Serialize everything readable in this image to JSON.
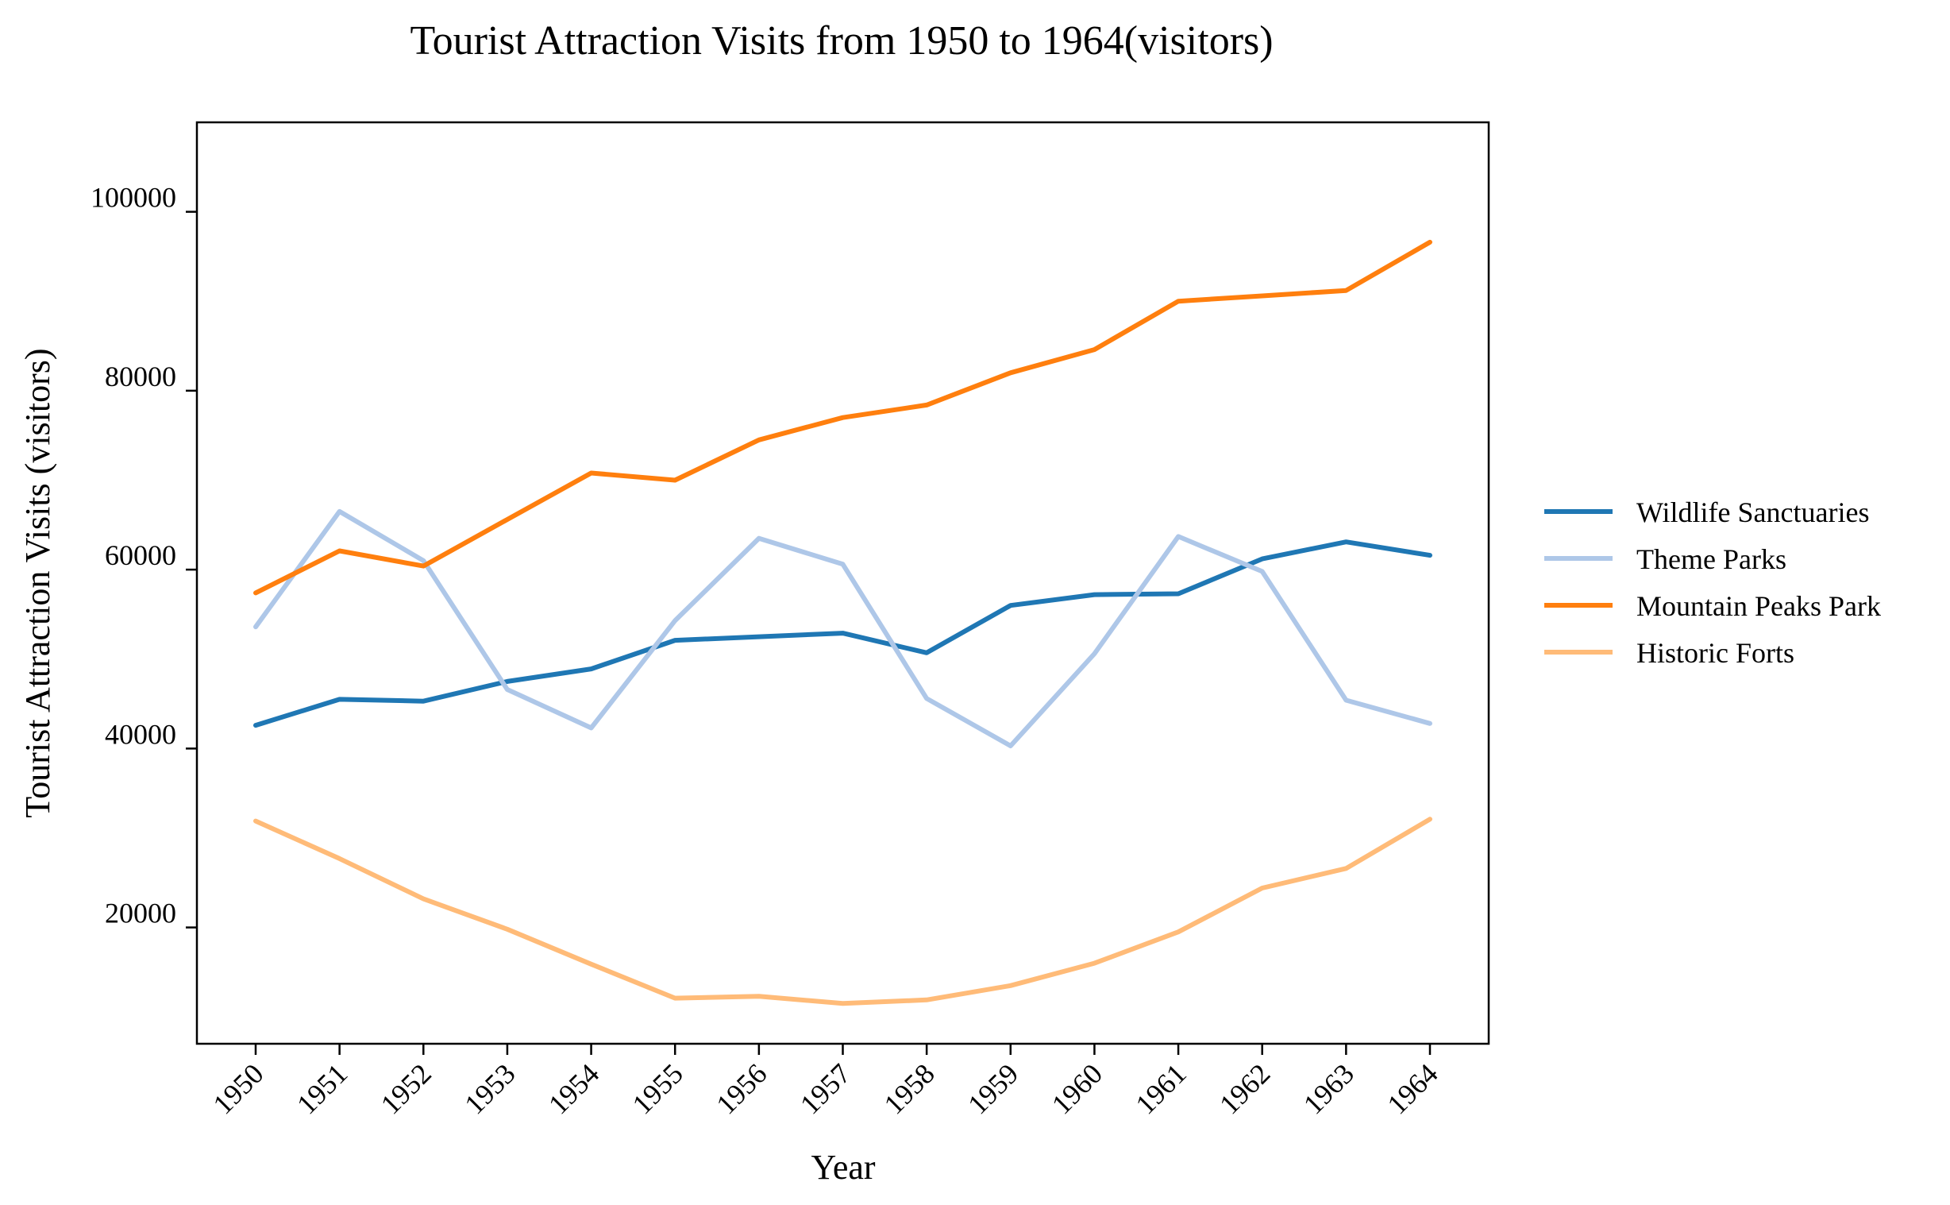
{
  "chart_data": {
    "type": "line",
    "title": "Tourist Attraction Visits from 1950 to 1964(visitors)",
    "xlabel": "Year",
    "ylabel": "Tourist Attraction Visits (visitors)",
    "x": [
      "1950",
      "1951",
      "1952",
      "1953",
      "1954",
      "1955",
      "1956",
      "1957",
      "1958",
      "1959",
      "1960",
      "1961",
      "1962",
      "1963",
      "1964"
    ],
    "ylim": [
      7000,
      110000
    ],
    "yticks": [
      20000,
      40000,
      60000,
      80000,
      100000
    ],
    "grid": false,
    "legend_position": "right",
    "series": [
      {
        "name": "Wildlife Sanctuaries",
        "color": "#1f77b4",
        "values": [
          42600,
          45500,
          45300,
          47500,
          48900,
          52100,
          52500,
          52900,
          50700,
          56000,
          57200,
          57300,
          61200,
          63100,
          61600
        ]
      },
      {
        "name": "Theme Parks",
        "color": "#aec7e8",
        "values": [
          53600,
          66500,
          61000,
          46600,
          42300,
          54300,
          63500,
          60600,
          45600,
          40300,
          50600,
          63700,
          59800,
          45400,
          42800
        ]
      },
      {
        "name": "Mountain Peaks Park",
        "color": "#ff7f0e",
        "values": [
          57400,
          62100,
          60400,
          65600,
          70800,
          70000,
          74500,
          77000,
          78400,
          82000,
          84600,
          90000,
          90600,
          91200,
          96600
        ]
      },
      {
        "name": "Historic Forts",
        "color": "#ffbb78",
        "values": [
          31900,
          27700,
          23200,
          19800,
          15900,
          12100,
          12300,
          11500,
          11900,
          13500,
          16000,
          19500,
          24400,
          26600,
          32100
        ]
      }
    ]
  }
}
